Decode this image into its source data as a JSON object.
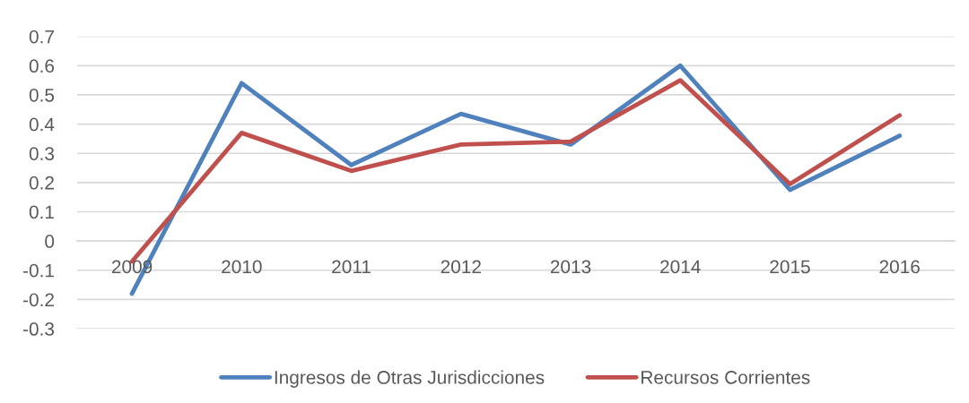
{
  "chart_data": {
    "type": "line",
    "categories": [
      "2009",
      "2010",
      "2011",
      "2012",
      "2013",
      "2014",
      "2015",
      "2016"
    ],
    "series": [
      {
        "name": "Ingresos de Otras Jurisdicciones",
        "color": "#4f81bd",
        "values": [
          -0.18,
          0.54,
          0.26,
          0.435,
          0.33,
          0.6,
          0.175,
          0.36
        ]
      },
      {
        "name": "Recursos Corrientes",
        "color": "#c0504d",
        "values": [
          -0.07,
          0.37,
          0.24,
          0.33,
          0.34,
          0.55,
          0.195,
          0.43
        ]
      }
    ],
    "ylim": [
      -0.3,
      0.7
    ],
    "yticks": [
      -0.3,
      -0.2,
      -0.1,
      0,
      0.1,
      0.2,
      0.3,
      0.4,
      0.5,
      0.6,
      0.7
    ],
    "grid": "y",
    "legend": "bottom",
    "line_style": "solid"
  }
}
